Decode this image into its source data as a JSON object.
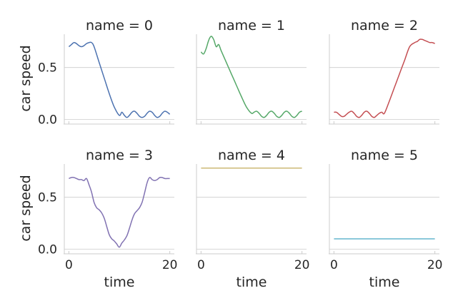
{
  "chart_data": {
    "type": "line",
    "xlabel": "time",
    "ylabel": "car speed",
    "xlim": [
      -0.9,
      20.9
    ],
    "ylim": [
      -0.03,
      0.82
    ],
    "x_ticks": [
      0,
      20
    ],
    "y_ticks": [
      0.0,
      0.5
    ],
    "y_tick_labels": [
      "0.0",
      "0.5"
    ],
    "x_tick_labels": [
      "0",
      "20"
    ],
    "grid": "horizontal",
    "panels": [
      {
        "title": "name = 0",
        "color": "#4c72b0",
        "x": [
          0,
          0.5,
          1,
          1.5,
          2,
          2.5,
          3,
          3.5,
          4,
          4.5,
          5,
          6,
          7,
          8,
          9,
          10,
          10.5,
          11,
          11.5,
          12,
          12.5,
          13,
          13.5,
          14,
          14.5,
          15,
          15.5,
          16,
          16.5,
          17,
          17.5,
          18,
          18.5,
          19,
          19.5,
          20
        ],
        "y": [
          0.7,
          0.72,
          0.74,
          0.73,
          0.71,
          0.7,
          0.71,
          0.73,
          0.74,
          0.74,
          0.7,
          0.55,
          0.4,
          0.25,
          0.12,
          0.04,
          0.07,
          0.04,
          0.02,
          0.04,
          0.07,
          0.08,
          0.06,
          0.03,
          0.02,
          0.03,
          0.06,
          0.08,
          0.07,
          0.04,
          0.02,
          0.03,
          0.06,
          0.08,
          0.07,
          0.05
        ]
      },
      {
        "title": "name = 1",
        "color": "#55a868",
        "x": [
          0,
          0.5,
          1,
          1.5,
          2,
          2.5,
          3,
          3.5,
          4,
          5,
          6,
          7,
          8,
          9,
          10,
          10.5,
          11,
          11.5,
          12,
          12.5,
          13,
          13.5,
          14,
          14.5,
          15,
          15.5,
          16,
          16.5,
          17,
          17.5,
          18,
          18.5,
          19,
          19.5,
          20
        ],
        "y": [
          0.65,
          0.63,
          0.68,
          0.76,
          0.8,
          0.77,
          0.7,
          0.72,
          0.66,
          0.55,
          0.44,
          0.33,
          0.22,
          0.12,
          0.06,
          0.07,
          0.08,
          0.06,
          0.03,
          0.02,
          0.04,
          0.07,
          0.08,
          0.06,
          0.03,
          0.02,
          0.04,
          0.07,
          0.08,
          0.06,
          0.03,
          0.02,
          0.04,
          0.07,
          0.08
        ]
      },
      {
        "title": "name = 2",
        "color": "#c44e52",
        "x": [
          0,
          0.5,
          1,
          1.5,
          2,
          2.5,
          3,
          3.5,
          4,
          4.5,
          5,
          5.5,
          6,
          6.5,
          7,
          7.5,
          8,
          8.5,
          9,
          9.5,
          10,
          11,
          12,
          13,
          14,
          15,
          16,
          16.5,
          17,
          17.5,
          18,
          18.5,
          19,
          19.5,
          20
        ],
        "y": [
          0.07,
          0.07,
          0.05,
          0.03,
          0.03,
          0.05,
          0.07,
          0.08,
          0.06,
          0.03,
          0.02,
          0.04,
          0.07,
          0.08,
          0.06,
          0.03,
          0.02,
          0.04,
          0.06,
          0.07,
          0.06,
          0.18,
          0.31,
          0.44,
          0.57,
          0.7,
          0.74,
          0.75,
          0.77,
          0.77,
          0.76,
          0.75,
          0.74,
          0.74,
          0.73
        ]
      },
      {
        "title": "name = 3",
        "color": "#8172b2",
        "x": [
          0,
          0.5,
          1,
          1.5,
          2,
          2.5,
          3,
          3.5,
          4,
          4.5,
          5,
          5.5,
          6,
          6.5,
          7,
          7.5,
          8,
          8.5,
          9,
          9.5,
          10,
          10.5,
          11,
          11.5,
          12,
          12.5,
          13,
          13.5,
          14,
          14.5,
          15,
          15.5,
          16,
          16.5,
          17,
          17.5,
          18,
          18.5,
          19,
          19.5,
          20
        ],
        "y": [
          0.68,
          0.69,
          0.69,
          0.68,
          0.67,
          0.67,
          0.66,
          0.68,
          0.62,
          0.55,
          0.45,
          0.4,
          0.38,
          0.35,
          0.3,
          0.22,
          0.14,
          0.1,
          0.08,
          0.05,
          0.02,
          0.06,
          0.09,
          0.13,
          0.2,
          0.28,
          0.34,
          0.37,
          0.4,
          0.45,
          0.54,
          0.64,
          0.69,
          0.67,
          0.66,
          0.67,
          0.69,
          0.69,
          0.68,
          0.68,
          0.68
        ]
      },
      {
        "title": "name = 4",
        "color": "#ccb974",
        "x": [
          0,
          20
        ],
        "y": [
          0.78,
          0.78
        ]
      },
      {
        "title": "name = 5",
        "color": "#64b5cd",
        "x": [
          0,
          20
        ],
        "y": [
          0.1,
          0.1
        ]
      }
    ]
  }
}
